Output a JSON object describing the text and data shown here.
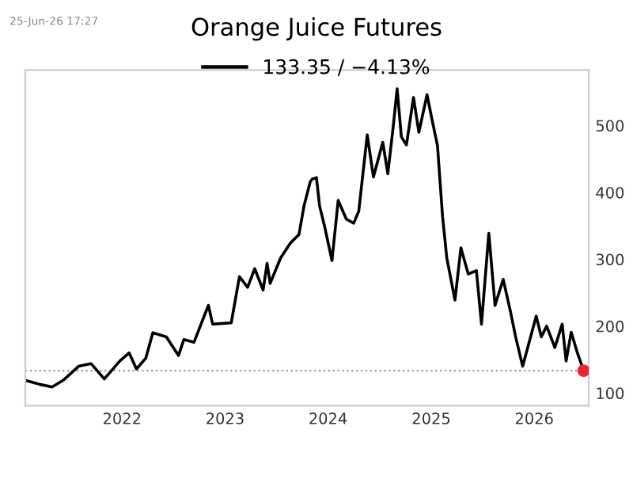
{
  "chart_data": {
    "type": "line",
    "title": "Orange Juice Futures",
    "annotations": [
      "25-Jun-26 17:27"
    ],
    "series": [
      {
        "name": "133.35 / −4.13%",
        "color": "#000000",
        "x": [
          "2021-01-23",
          "2021-03-15",
          "2021-04-28",
          "2021-06-06",
          "2021-07-31",
          "2021-09-13",
          "2021-10-30",
          "2021-12-24",
          "2022-01-26",
          "2022-02-21",
          "2022-03-26",
          "2022-04-20",
          "2022-06-07",
          "2022-07-20",
          "2022-08-08",
          "2022-09-13",
          "2022-10-19",
          "2022-11-03",
          "2022-11-18",
          "2023-01-23",
          "2023-02-21",
          "2023-03-22",
          "2023-04-16",
          "2023-05-16",
          "2023-05-30",
          "2023-06-10",
          "2023-07-17",
          "2023-08-22",
          "2023-09-20",
          "2023-10-08",
          "2023-10-30",
          "2023-11-06",
          "2023-11-21",
          "2023-12-02",
          "2023-12-20",
          "2024-01-15",
          "2024-02-06",
          "2024-03-06",
          "2024-04-01",
          "2024-04-19",
          "2024-05-19",
          "2024-06-10",
          "2024-07-13",
          "2024-07-31",
          "2024-08-19",
          "2024-09-02",
          "2024-09-17",
          "2024-10-05",
          "2024-10-30",
          "2024-11-18",
          "2024-12-17",
          "2025-01-05",
          "2025-01-23",
          "2025-02-10",
          "2025-02-25",
          "2025-03-26",
          "2025-04-16",
          "2025-05-12",
          "2025-06-10",
          "2025-06-28",
          "2025-07-24",
          "2025-08-15",
          "2025-09-13",
          "2025-10-08",
          "2025-10-27",
          "2025-11-21",
          "2026-01-08",
          "2026-01-26",
          "2026-02-14",
          "2026-03-15",
          "2026-04-10",
          "2026-04-24",
          "2026-05-12",
          "2026-06-03",
          "2026-06-25"
        ],
        "values": [
          119,
          113,
          109,
          119,
          140,
          144,
          121,
          148,
          160,
          136,
          152,
          190,
          184,
          156,
          180,
          176,
          215,
          231,
          203,
          205,
          274,
          258,
          286,
          254,
          294,
          264,
          302,
          325,
          337,
          380,
          416,
          420,
          422,
          380,
          349,
          298,
          388,
          360,
          354,
          372,
          486,
          423,
          475,
          428,
          498,
          555,
          483,
          471,
          542,
          490,
          546,
          506,
          470,
          364,
          302,
          239,
          317,
          278,
          283,
          203,
          339,
          231,
          270,
          223,
          184,
          140,
          215,
          184,
          200,
          168,
          203,
          148,
          191,
          160,
          133.35
        ]
      },
      {
        "color": "#e8262b",
        "type": "scatter",
        "marker": "circle",
        "x": [
          "2026-06-25"
        ],
        "values": [
          133.35
        ]
      }
    ],
    "ref_lines": [
      {
        "axis": "y",
        "value": 133.35,
        "color": "#999999",
        "line_style": "dotted"
      }
    ],
    "xlim": [
      "2021-01-23",
      "2026-07-13"
    ],
    "xticks": [
      {
        "value": "2022-01-01",
        "label": "2022"
      },
      {
        "value": "2023-01-01",
        "label": "2023"
      },
      {
        "value": "2024-01-01",
        "label": "2024"
      },
      {
        "value": "2025-01-01",
        "label": "2025"
      },
      {
        "value": "2026-01-01",
        "label": "2026"
      }
    ],
    "ylim": [
      81,
      583
    ],
    "yticks": [
      100,
      200,
      300,
      400,
      500
    ],
    "grid": false,
    "legend": "top",
    "line_style": "solid"
  }
}
